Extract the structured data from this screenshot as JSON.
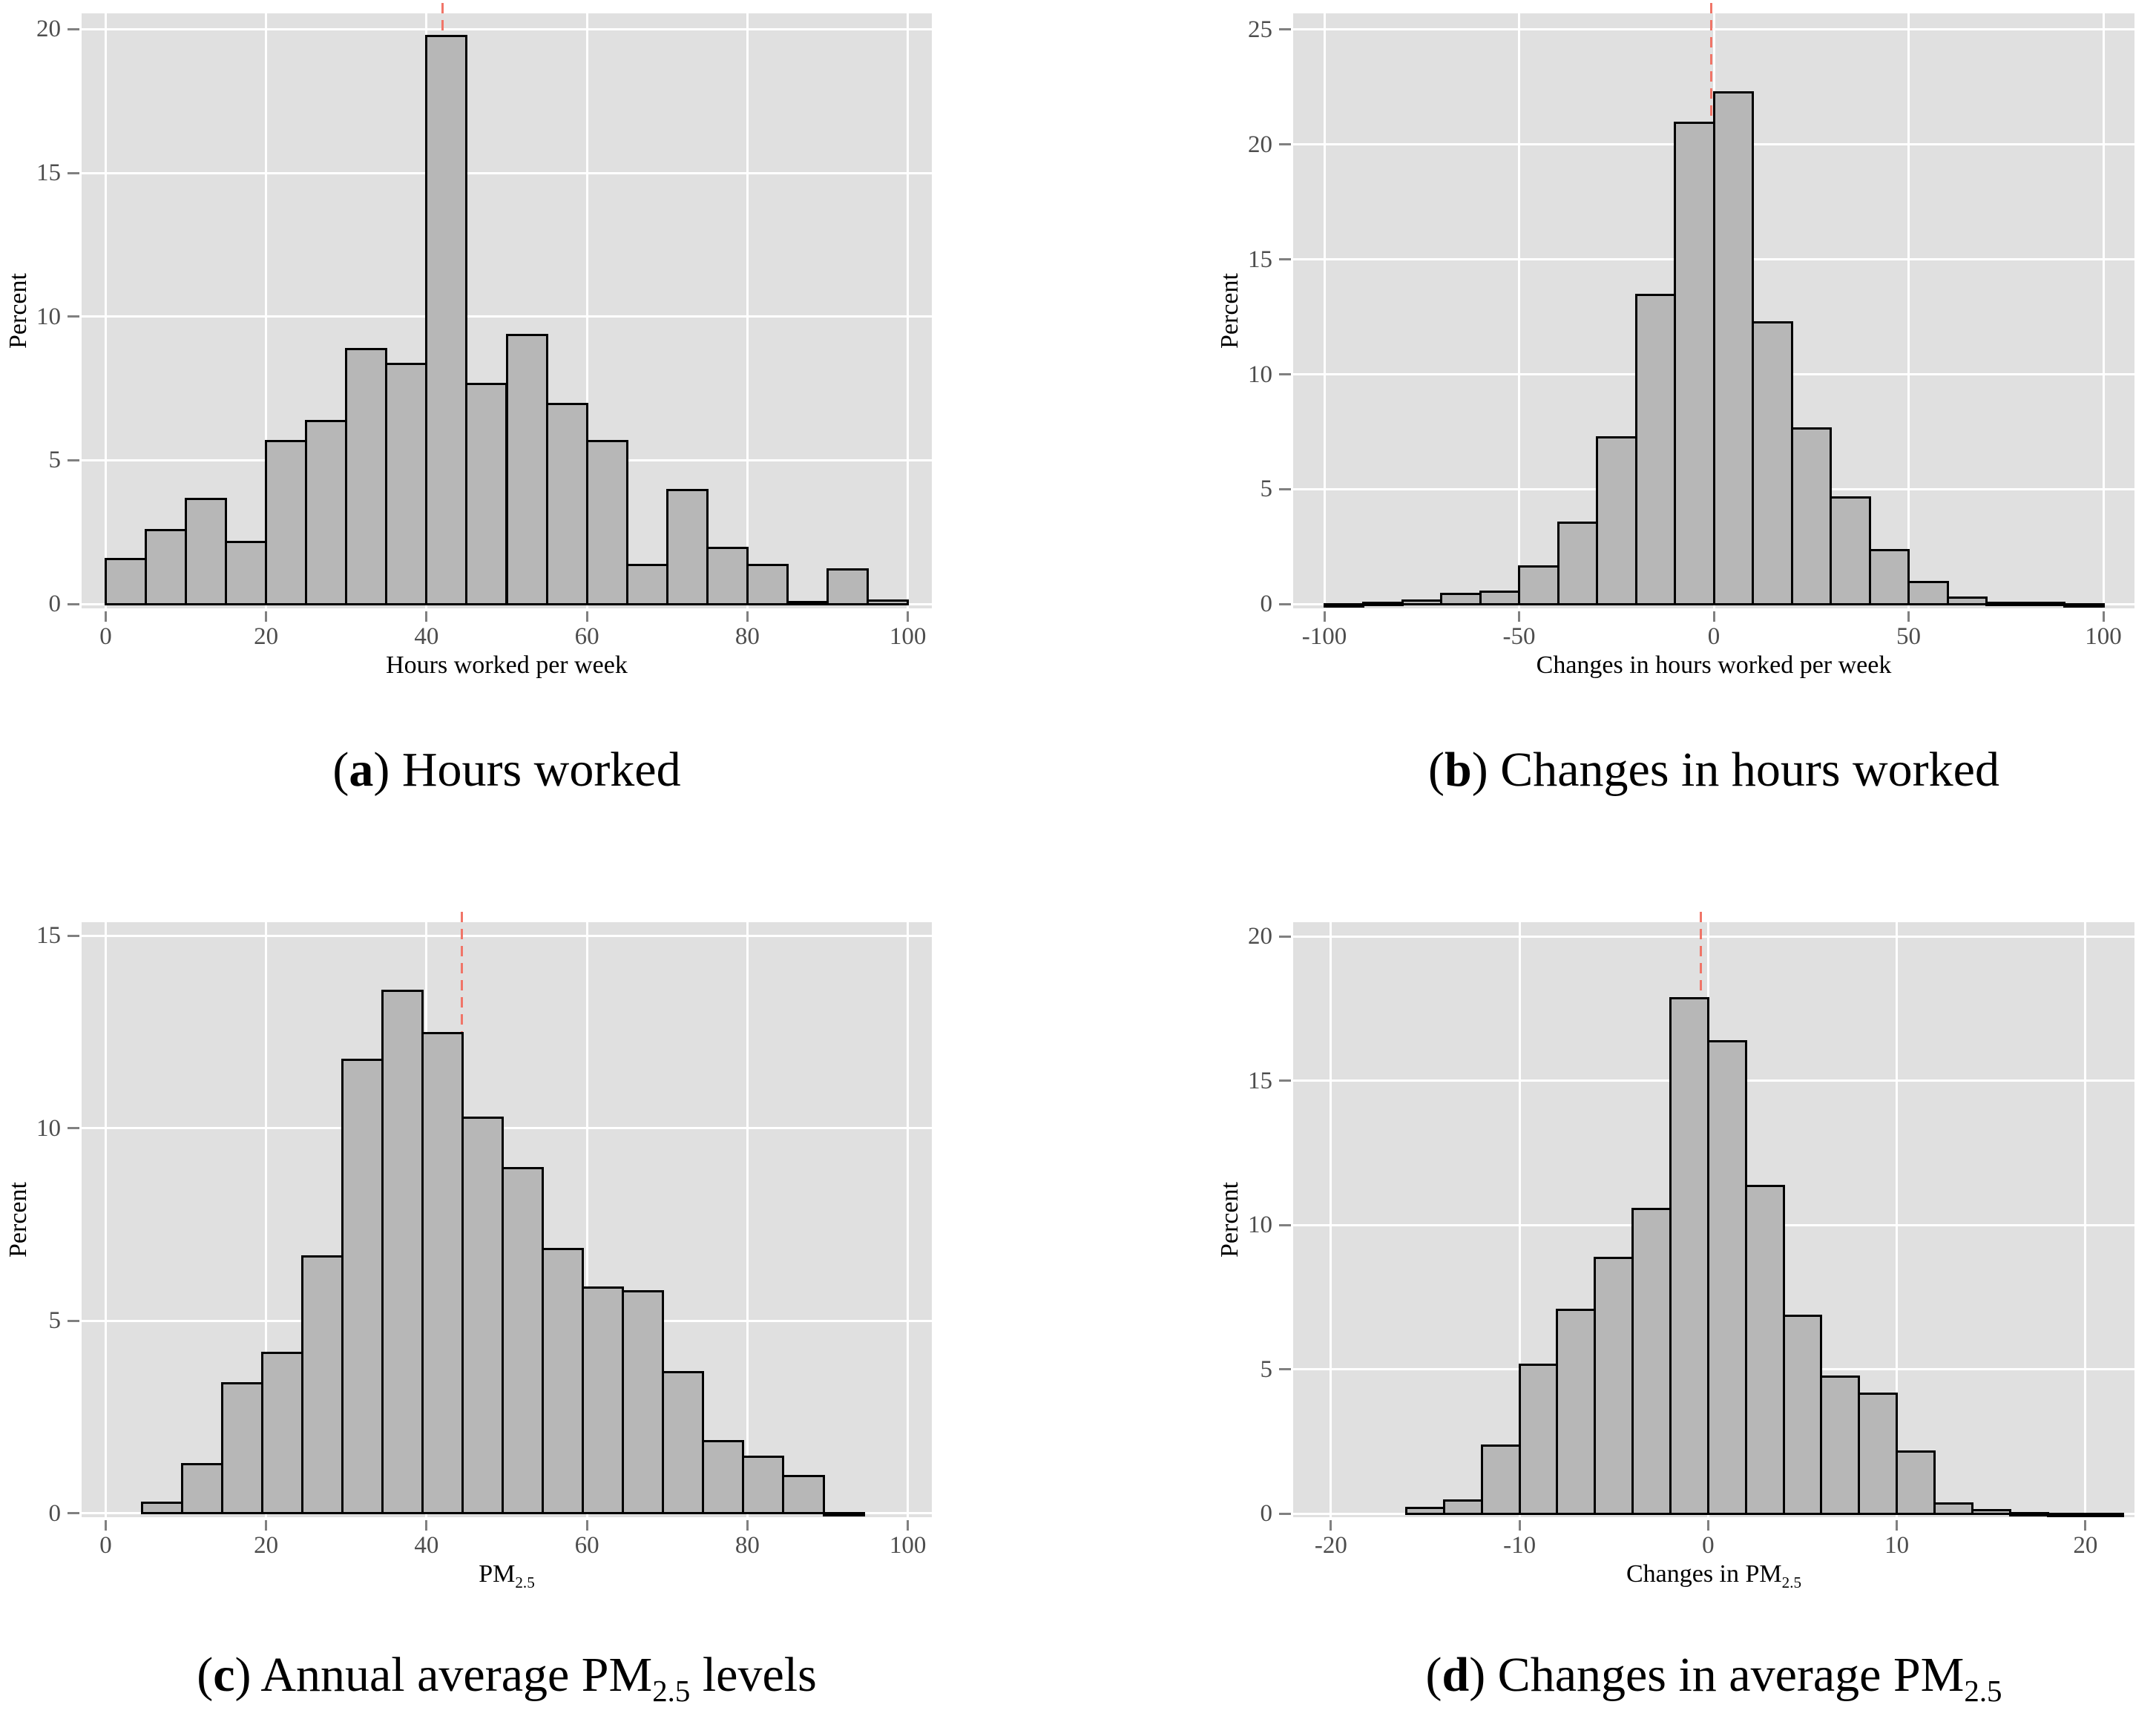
{
  "figure": {
    "background": "#ffffff",
    "colors": {
      "plot_bg": "#e0e0e0",
      "gridline": "#ffffff",
      "bar_fill": "#b7b7b7",
      "bar_border": "#000000",
      "mean_line": "#f07568",
      "tick_mark": "#808080",
      "tick_label": "#4d4d4d",
      "text": "#000000"
    }
  },
  "captions": [
    {
      "open": "(",
      "letter": "a",
      "close": ")",
      "pre": " Hours worked",
      "sub": "",
      "post": ""
    },
    {
      "open": "(",
      "letter": "b",
      "close": ")",
      "pre": " Changes in hours worked",
      "sub": "",
      "post": ""
    },
    {
      "open": "(",
      "letter": "c",
      "close": ")",
      "pre": " Annual average PM",
      "sub": "2.5",
      "post": " levels"
    },
    {
      "open": "(",
      "letter": "d",
      "close": ")",
      "pre": " Changes in average PM",
      "sub": "2.5",
      "post": ""
    }
  ],
  "chart_data": [
    {
      "type": "bar",
      "title": "(a) Hours worked",
      "ylabel": "Percent",
      "xlabel_main": "Hours worked per week",
      "xlabel_sub": "",
      "bin_start": 0,
      "bin_width": 5,
      "values": [
        1.6,
        2.6,
        3.7,
        2.2,
        5.7,
        6.4,
        8.9,
        8.4,
        19.8,
        7.7,
        9.4,
        7.0,
        5.7,
        1.4,
        4.0,
        2.0,
        1.4,
        0.1,
        1.25,
        0.15
      ],
      "mean_line_x": 42,
      "xticks": [
        0,
        20,
        40,
        60,
        80,
        100
      ],
      "yticks": [
        0,
        5,
        10,
        15,
        20
      ],
      "xlim": [
        -3,
        103
      ],
      "ylim": [
        -0.15,
        20.55
      ],
      "grid": true,
      "legend": "none"
    },
    {
      "type": "bar",
      "title": "(b) Changes in hours worked",
      "ylabel": "Percent",
      "xlabel_main": "Changes in hours worked per week",
      "xlabel_sub": "",
      "bin_start": -100,
      "bin_width": 10,
      "values": [
        0.04,
        0.1,
        0.2,
        0.5,
        0.6,
        1.7,
        3.6,
        7.3,
        13.5,
        21.0,
        22.3,
        12.3,
        7.7,
        4.7,
        2.4,
        1.0,
        0.35,
        0.12,
        0.1,
        0.04
      ],
      "mean_line_x": -0.6,
      "xticks": [
        -100,
        -50,
        0,
        50,
        100
      ],
      "yticks": [
        0,
        5,
        10,
        15,
        20,
        25
      ],
      "xlim": [
        -108,
        108
      ],
      "ylim": [
        -0.18,
        25.7
      ],
      "grid": true,
      "legend": "none"
    },
    {
      "type": "bar",
      "title": "(c) Annual average PM2.5 levels",
      "ylabel": "Percent",
      "xlabel_main": "PM",
      "xlabel_sub": "2.5",
      "bin_start": 4.5,
      "bin_width": 5,
      "values": [
        0.3,
        1.3,
        3.4,
        4.2,
        6.7,
        11.8,
        13.6,
        12.5,
        10.3,
        9.0,
        6.9,
        5.9,
        5.8,
        3.7,
        1.9,
        1.5,
        1.0,
        0.04
      ],
      "mean_line_x": 44.4,
      "xticks": [
        0,
        20,
        40,
        60,
        80,
        100
      ],
      "yticks": [
        0,
        5,
        10,
        15
      ],
      "xlim": [
        -3,
        103
      ],
      "ylim": [
        -0.1,
        15.35
      ],
      "grid": true,
      "legend": "none"
    },
    {
      "type": "bar",
      "title": "(d) Changes in average PM2.5",
      "ylabel": "Percent",
      "xlabel_main": "Changes in PM",
      "xlabel_sub": "2.5",
      "bin_start": -16,
      "bin_width": 2,
      "values": [
        0.25,
        0.5,
        2.4,
        5.2,
        7.1,
        8.9,
        10.6,
        17.9,
        16.4,
        11.4,
        6.9,
        4.8,
        4.2,
        2.2,
        0.4,
        0.15,
        0.05,
        0.03,
        0.03
      ],
      "mean_line_x": -0.4,
      "xticks": [
        -20,
        -10,
        0,
        10,
        20
      ],
      "yticks": [
        0,
        5,
        10,
        15,
        20
      ],
      "xlim": [
        -22,
        22.6
      ],
      "ylim": [
        -0.12,
        20.5
      ],
      "grid": true,
      "legend": "none"
    }
  ]
}
